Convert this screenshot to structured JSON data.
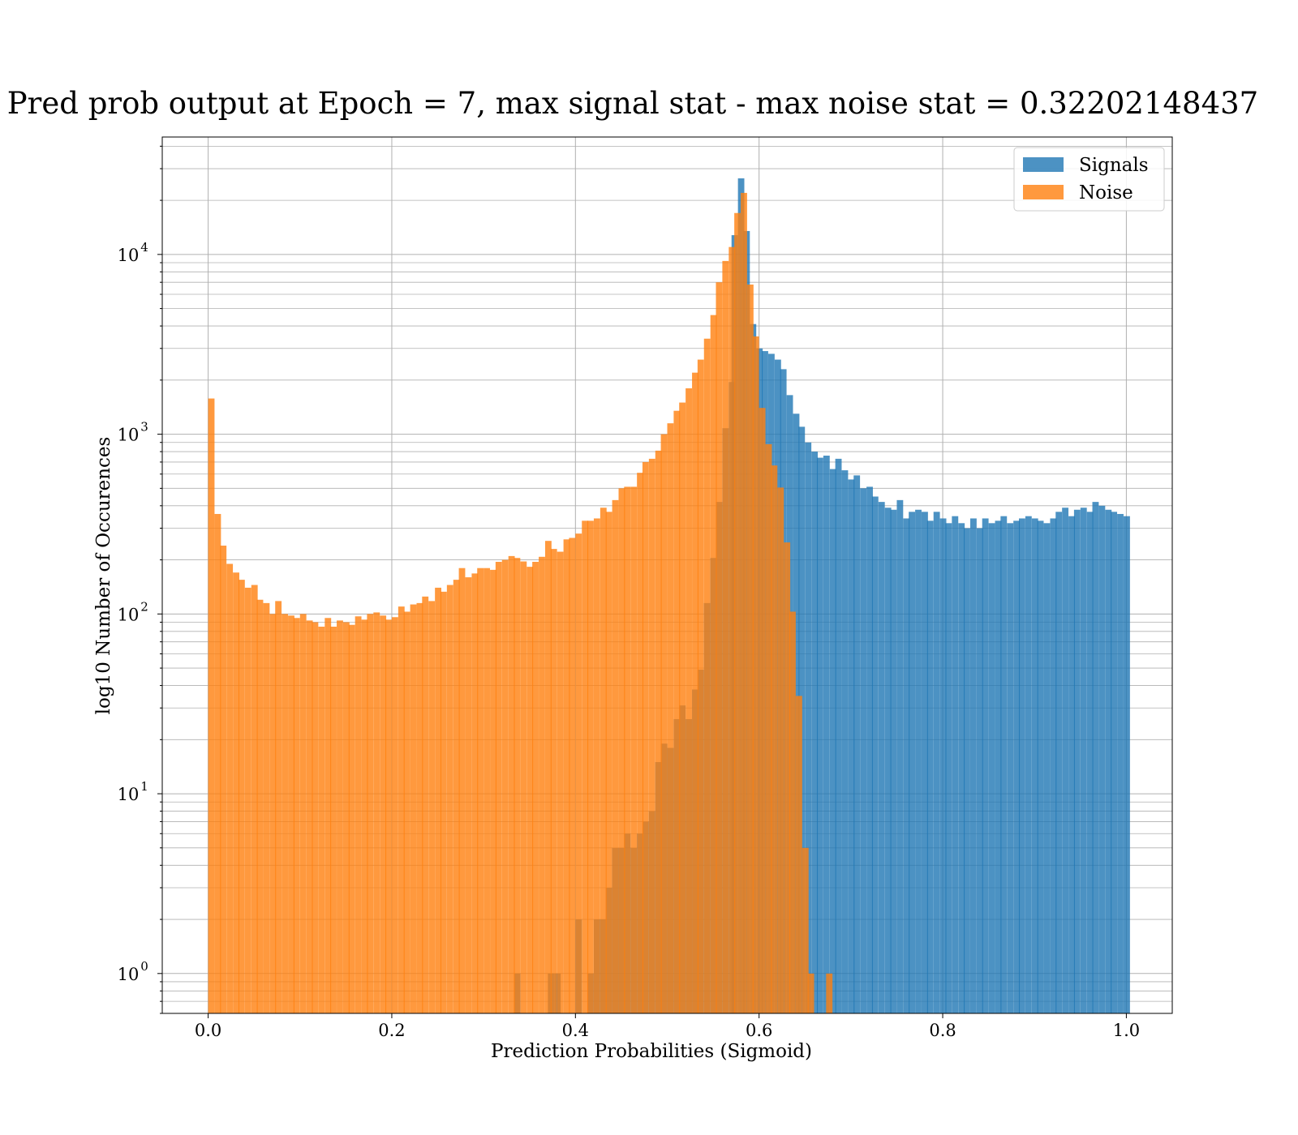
{
  "chart_data": {
    "type": "bar",
    "title": "Pred prob output at Epoch = 7, max signal stat - max noise stat = 0.32202148437",
    "xlabel": "Prediction Probabilities (Sigmoid)",
    "ylabel": "log10 Number of Occurences",
    "xlim": [
      -0.05,
      1.05
    ],
    "ylim": [
      0.6,
      45000
    ],
    "yscale": "log",
    "grid": true,
    "legend_position": "top-right",
    "x_ticks": [
      "0.0",
      "0.2",
      "0.4",
      "0.6",
      "0.8",
      "1.0"
    ],
    "y_ticks": [
      {
        "base": "10",
        "exp": "0",
        "value": 1
      },
      {
        "base": "10",
        "exp": "1",
        "value": 10
      },
      {
        "base": "10",
        "exp": "2",
        "value": 100
      },
      {
        "base": "10",
        "exp": "3",
        "value": 1000
      },
      {
        "base": "10",
        "exp": "4",
        "value": 10000
      }
    ],
    "bin_width": 0.00667,
    "series": [
      {
        "name": "Signals",
        "color": "#1f77b4",
        "bins": [
          [
            0.333,
            1
          ],
          [
            0.37,
            1
          ],
          [
            0.377,
            1
          ],
          [
            0.4,
            2
          ],
          [
            0.413,
            1
          ],
          [
            0.42,
            2
          ],
          [
            0.427,
            2
          ],
          [
            0.433,
            3
          ],
          [
            0.44,
            5
          ],
          [
            0.447,
            5
          ],
          [
            0.453,
            6
          ],
          [
            0.46,
            5
          ],
          [
            0.467,
            6
          ],
          [
            0.473,
            7
          ],
          [
            0.48,
            8
          ],
          [
            0.487,
            15
          ],
          [
            0.493,
            19
          ],
          [
            0.5,
            18
          ],
          [
            0.507,
            26
          ],
          [
            0.513,
            31
          ],
          [
            0.52,
            26
          ],
          [
            0.527,
            38
          ],
          [
            0.533,
            49
          ],
          [
            0.54,
            115
          ],
          [
            0.547,
            205
          ],
          [
            0.553,
            420
          ],
          [
            0.56,
            1080
          ],
          [
            0.567,
            1950
          ],
          [
            0.57,
            12800
          ],
          [
            0.577,
            26500
          ],
          [
            0.583,
            13500
          ],
          [
            0.59,
            4100
          ],
          [
            0.597,
            3000
          ],
          [
            0.603,
            2900
          ],
          [
            0.61,
            2800
          ],
          [
            0.617,
            2600
          ],
          [
            0.623,
            2300
          ],
          [
            0.63,
            1650
          ],
          [
            0.637,
            1300
          ],
          [
            0.643,
            1100
          ],
          [
            0.65,
            900
          ],
          [
            0.657,
            800
          ],
          [
            0.663,
            740
          ],
          [
            0.67,
            760
          ],
          [
            0.677,
            640
          ],
          [
            0.683,
            730
          ],
          [
            0.69,
            630
          ],
          [
            0.697,
            560
          ],
          [
            0.703,
            590
          ],
          [
            0.71,
            500
          ],
          [
            0.717,
            510
          ],
          [
            0.723,
            450
          ],
          [
            0.73,
            420
          ],
          [
            0.737,
            390
          ],
          [
            0.743,
            380
          ],
          [
            0.75,
            430
          ],
          [
            0.757,
            340
          ],
          [
            0.763,
            370
          ],
          [
            0.77,
            380
          ],
          [
            0.777,
            370
          ],
          [
            0.783,
            330
          ],
          [
            0.79,
            370
          ],
          [
            0.797,
            340
          ],
          [
            0.803,
            320
          ],
          [
            0.81,
            350
          ],
          [
            0.817,
            320
          ],
          [
            0.823,
            300
          ],
          [
            0.83,
            340
          ],
          [
            0.837,
            300
          ],
          [
            0.843,
            340
          ],
          [
            0.85,
            320
          ],
          [
            0.857,
            330
          ],
          [
            0.863,
            350
          ],
          [
            0.87,
            320
          ],
          [
            0.877,
            330
          ],
          [
            0.883,
            340
          ],
          [
            0.89,
            350
          ],
          [
            0.897,
            340
          ],
          [
            0.903,
            330
          ],
          [
            0.91,
            320
          ],
          [
            0.917,
            340
          ],
          [
            0.923,
            370
          ],
          [
            0.93,
            390
          ],
          [
            0.937,
            350
          ],
          [
            0.943,
            380
          ],
          [
            0.95,
            390
          ],
          [
            0.957,
            370
          ],
          [
            0.963,
            420
          ],
          [
            0.97,
            400
          ],
          [
            0.977,
            380
          ],
          [
            0.983,
            370
          ],
          [
            0.99,
            360
          ],
          [
            0.997,
            350
          ]
        ]
      },
      {
        "name": "Noise",
        "color": "#ff7f0e",
        "bins": [
          [
            0.0,
            1580
          ],
          [
            0.007,
            360
          ],
          [
            0.013,
            240
          ],
          [
            0.02,
            190
          ],
          [
            0.027,
            170
          ],
          [
            0.033,
            155
          ],
          [
            0.04,
            140
          ],
          [
            0.047,
            145
          ],
          [
            0.053,
            120
          ],
          [
            0.06,
            115
          ],
          [
            0.067,
            100
          ],
          [
            0.073,
            118
          ],
          [
            0.08,
            100
          ],
          [
            0.087,
            98
          ],
          [
            0.093,
            95
          ],
          [
            0.1,
            100
          ],
          [
            0.107,
            92
          ],
          [
            0.113,
            90
          ],
          [
            0.12,
            85
          ],
          [
            0.127,
            95
          ],
          [
            0.133,
            85
          ],
          [
            0.14,
            92
          ],
          [
            0.147,
            90
          ],
          [
            0.153,
            87
          ],
          [
            0.16,
            97
          ],
          [
            0.167,
            93
          ],
          [
            0.173,
            100
          ],
          [
            0.18,
            102
          ],
          [
            0.187,
            98
          ],
          [
            0.193,
            93
          ],
          [
            0.2,
            96
          ],
          [
            0.207,
            110
          ],
          [
            0.213,
            103
          ],
          [
            0.22,
            113
          ],
          [
            0.227,
            115
          ],
          [
            0.233,
            125
          ],
          [
            0.24,
            118
          ],
          [
            0.247,
            140
          ],
          [
            0.253,
            133
          ],
          [
            0.26,
            145
          ],
          [
            0.267,
            155
          ],
          [
            0.273,
            180
          ],
          [
            0.28,
            160
          ],
          [
            0.287,
            168
          ],
          [
            0.293,
            180
          ],
          [
            0.3,
            180
          ],
          [
            0.307,
            176
          ],
          [
            0.313,
            195
          ],
          [
            0.32,
            200
          ],
          [
            0.327,
            210
          ],
          [
            0.333,
            205
          ],
          [
            0.34,
            196
          ],
          [
            0.347,
            183
          ],
          [
            0.353,
            195
          ],
          [
            0.36,
            208
          ],
          [
            0.367,
            255
          ],
          [
            0.373,
            230
          ],
          [
            0.38,
            222
          ],
          [
            0.387,
            260
          ],
          [
            0.393,
            265
          ],
          [
            0.4,
            280
          ],
          [
            0.407,
            330
          ],
          [
            0.413,
            330
          ],
          [
            0.42,
            340
          ],
          [
            0.427,
            390
          ],
          [
            0.433,
            370
          ],
          [
            0.44,
            430
          ],
          [
            0.447,
            500
          ],
          [
            0.453,
            510
          ],
          [
            0.46,
            510
          ],
          [
            0.467,
            610
          ],
          [
            0.473,
            700
          ],
          [
            0.48,
            730
          ],
          [
            0.487,
            810
          ],
          [
            0.493,
            1000
          ],
          [
            0.5,
            1150
          ],
          [
            0.507,
            1350
          ],
          [
            0.513,
            1500
          ],
          [
            0.52,
            1800
          ],
          [
            0.527,
            2200
          ],
          [
            0.533,
            2600
          ],
          [
            0.54,
            3400
          ],
          [
            0.547,
            4600
          ],
          [
            0.553,
            7000
          ],
          [
            0.56,
            9200
          ],
          [
            0.567,
            11000
          ],
          [
            0.573,
            17000
          ],
          [
            0.58,
            22000
          ],
          [
            0.587,
            6800
          ],
          [
            0.593,
            3500
          ],
          [
            0.6,
            1400
          ],
          [
            0.607,
            880
          ],
          [
            0.613,
            670
          ],
          [
            0.62,
            505
          ],
          [
            0.627,
            250
          ],
          [
            0.633,
            103
          ],
          [
            0.64,
            35
          ],
          [
            0.647,
            5
          ],
          [
            0.653,
            1
          ],
          [
            0.673,
            1
          ]
        ]
      }
    ]
  }
}
